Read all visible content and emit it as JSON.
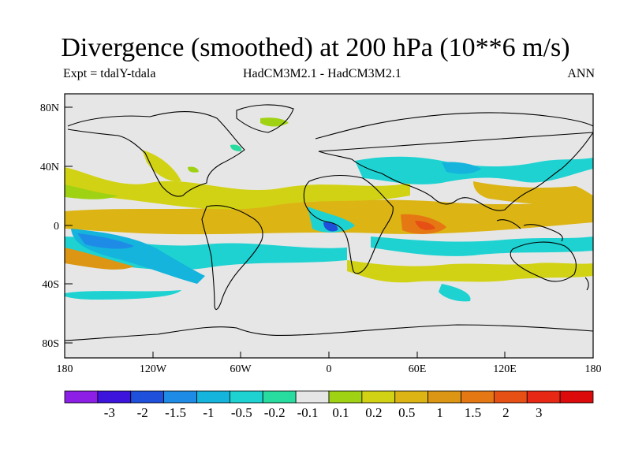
{
  "title": "Divergence (smoothed) at 200 hPa (10**6 m/s)",
  "subtitle_left": "Expt = tdalY-tdala",
  "subtitle_center": "HadCM3M2.1 - HadCM3M2.1",
  "subtitle_right": "ANN",
  "map": {
    "background_color": "#e6e6e6",
    "lat_ticks": [
      "80N",
      "40N",
      "0",
      "40S",
      "80S"
    ],
    "lon_ticks": [
      "180",
      "120W",
      "60W",
      "0",
      "60E",
      "120E",
      "180"
    ]
  },
  "colorbar": {
    "colors": [
      "#8c1ee6",
      "#3c14dc",
      "#1e50dc",
      "#1e8ce6",
      "#14b4dc",
      "#1ed2d2",
      "#28dca0",
      "#e6e6e6",
      "#a0d214",
      "#d2d214",
      "#dcb414",
      "#dc9614",
      "#e67814",
      "#e65014",
      "#e62814",
      "#dc0a0a"
    ],
    "labels": [
      "-3",
      "-2",
      "-1.5",
      "-1",
      "-0.5",
      "-0.2",
      "-0.1",
      "0.1",
      "0.2",
      "0.5",
      "1",
      "1.5",
      "2",
      "3"
    ]
  }
}
